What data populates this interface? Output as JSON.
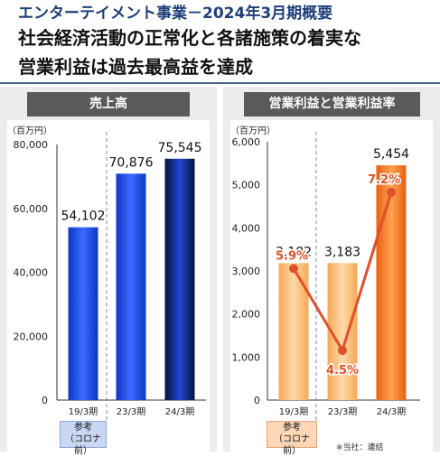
{
  "header": {
    "subtitle": "エンターテイメント事業－2024年3月期概要",
    "headline_line1": "社会経済活動の正常化と各諸施策の着実な",
    "headline_line2": "営業利益は過去最高益を達成"
  },
  "colors": {
    "revenue_bar": "#1f4fe0",
    "profit_bar": "#f08a30",
    "margin_line": "#e0502a",
    "panel_title_bg": "#5a5a5a"
  },
  "chart_data": [
    {
      "type": "bar",
      "title": "売上高",
      "ylabel": "（百万円）",
      "categories": [
        "19/3期",
        "23/3期",
        "24/3期"
      ],
      "values": [
        54102,
        70876,
        75545
      ],
      "value_labels": [
        "54,102",
        "70,876",
        "75,545"
      ],
      "ylim": [
        0,
        80000
      ],
      "yticks": [
        0,
        20000,
        40000,
        60000,
        80000
      ],
      "ytick_labels": [
        "0",
        "20,000",
        "40,000",
        "60,000",
        "80,000"
      ],
      "reference_label_line1": "参考",
      "reference_label_line2": "（コロナ前）",
      "grid": false
    },
    {
      "type": "bar",
      "title": "営業利益と営業利益率",
      "ylabel": "（百万円）",
      "categories": [
        "19/3期",
        "23/3期",
        "24/3期"
      ],
      "values": [
        3182,
        3183,
        5454
      ],
      "value_labels": [
        "3,182",
        "3,183",
        "5,454"
      ],
      "ylim": [
        0,
        6000
      ],
      "yticks": [
        0,
        1000,
        2000,
        3000,
        4000,
        5000,
        6000
      ],
      "ytick_labels": [
        "0",
        "1,000",
        "2,000",
        "3,000",
        "4,000",
        "5,000",
        "6,000"
      ],
      "margin_values": [
        5.9,
        4.5,
        7.2
      ],
      "margin_labels": [
        "5.9%",
        "4.5%",
        "7.2%"
      ],
      "reference_label_line1": "参考",
      "reference_label_line2": "（コロナ前）",
      "footnote": "※当社：連結",
      "grid": false
    }
  ]
}
